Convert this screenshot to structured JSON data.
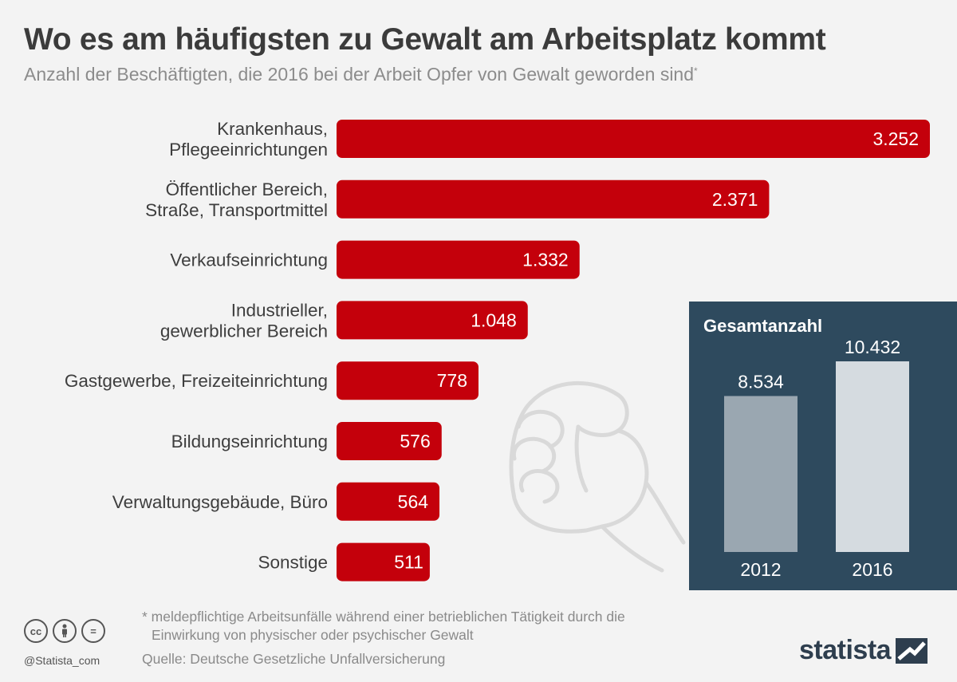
{
  "header": {
    "title": "Wo es am häufigsten zu Gewalt am Arbeitsplatz kommt",
    "subtitle": "Anzahl der Beschäftigten, die 2016 bei der Arbeit Opfer von Gewalt geworden sind",
    "subtitle_mark": "*"
  },
  "colors": {
    "bar": "#c4000b",
    "inset_bg": "#2e4a5e",
    "inset_bar_2012": "#9aa7b1",
    "inset_bar_2016": "#d5dbe0"
  },
  "chart_data": [
    {
      "type": "bar",
      "orientation": "horizontal",
      "title": "Wo es am häufigsten zu Gewalt am Arbeitsplatz kommt",
      "categories": [
        [
          "Krankenhaus,",
          "Pflegeeinrichtungen"
        ],
        [
          "Öffentlicher Bereich,",
          "Straße, Transportmittel"
        ],
        [
          "Verkaufseinrichtung"
        ],
        [
          "Industrieller,",
          "gewerblicher Bereich"
        ],
        [
          "Gastgewerbe, Freizeiteinrichtung"
        ],
        [
          "Bildungseinrichtung"
        ],
        [
          "Verwaltungsgebäude, Büro"
        ],
        [
          "Sonstige"
        ]
      ],
      "values": [
        3252,
        2371,
        1332,
        1048,
        778,
        576,
        564,
        511
      ],
      "value_labels": [
        "3.252",
        "2.371",
        "1.332",
        "1.048",
        "778",
        "576",
        "564",
        "511"
      ],
      "xlim": [
        0,
        3252
      ]
    },
    {
      "type": "bar",
      "title": "Gesamtanzahl",
      "categories": [
        "2012",
        "2016"
      ],
      "values": [
        8534,
        10432
      ],
      "value_labels": [
        "8.534",
        "10.432"
      ],
      "ylim": [
        0,
        10432
      ]
    }
  ],
  "inset": {
    "title": "Gesamtanzahl"
  },
  "footer": {
    "note_line1": "* meldepflichtige Arbeitsunfälle während einer betrieblichen Tätigkeit durch die",
    "note_line2": "Einwirkung von physischer oder psychischer Gewalt",
    "source": "Quelle: Deutsche Gesetzliche Unfallversicherung",
    "handle": "@Statista_com",
    "brand": "statista",
    "cc_icons": [
      "cc-icon",
      "person-icon",
      "equals-icon"
    ],
    "cc_labels": [
      "cc",
      "",
      "="
    ]
  }
}
